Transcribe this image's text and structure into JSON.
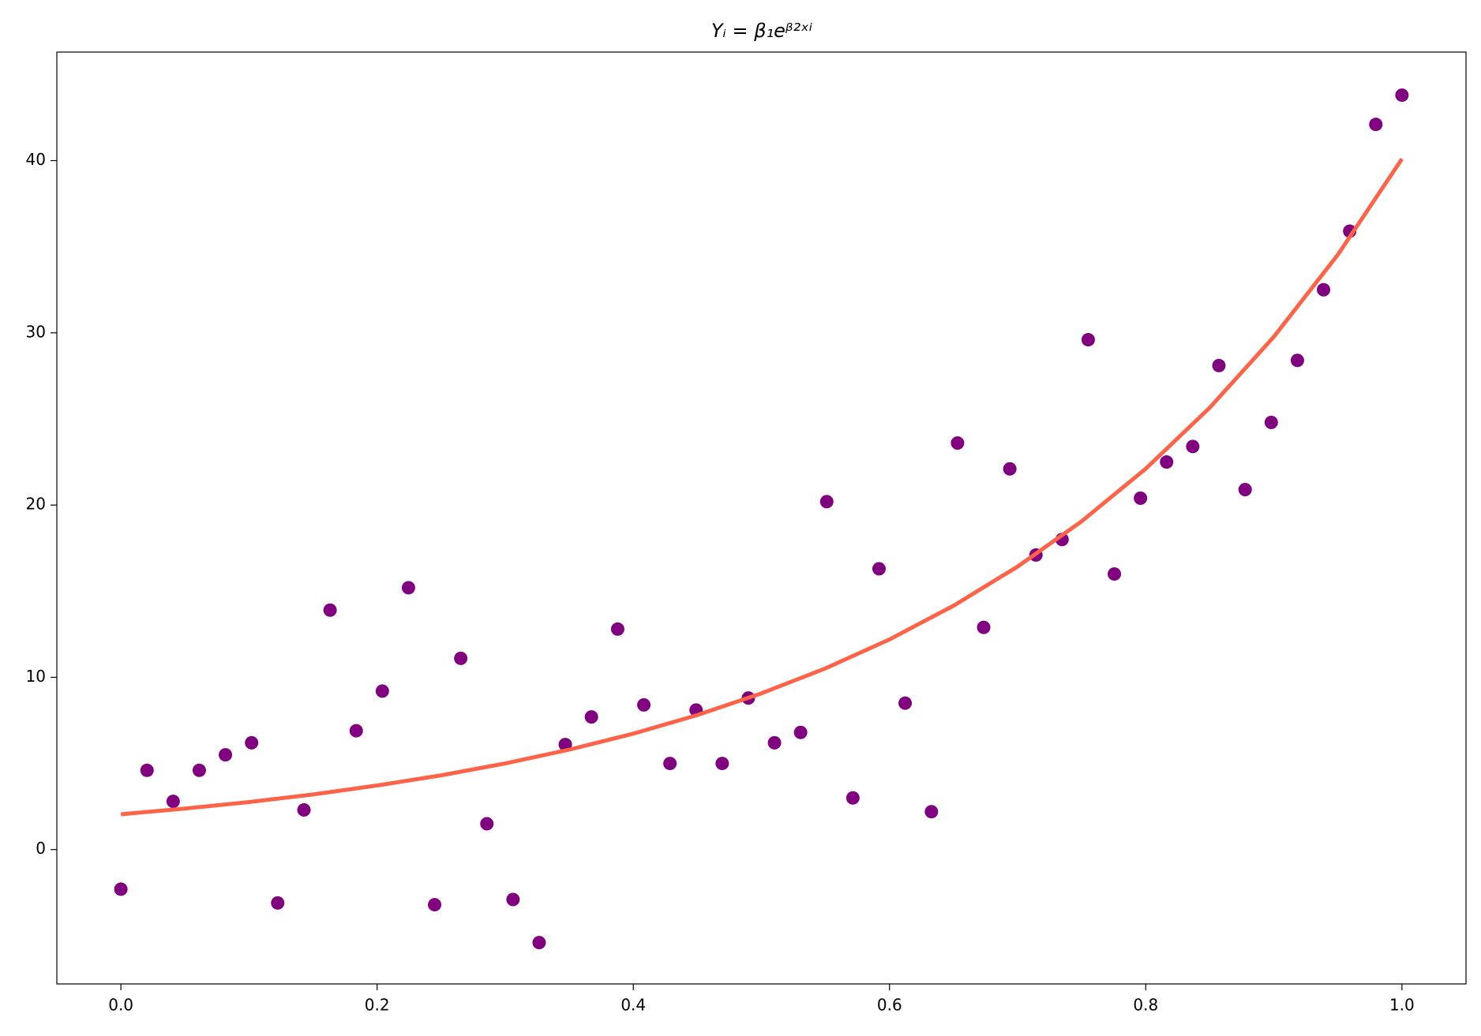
{
  "chart_data": {
    "type": "scatter",
    "title": "Yᵢ = β₁eᵝ²ˣⁱ",
    "xlim": [
      -0.05,
      1.05
    ],
    "ylim": [
      -7.8,
      46.3
    ],
    "xticks": [
      {
        "value": 0,
        "label": "0.0"
      },
      0.2,
      0.4,
      0.6,
      0.8,
      {
        "value": 1,
        "label": "1.0"
      }
    ],
    "yticks": [
      0,
      10,
      20,
      30,
      40
    ],
    "grid": false,
    "series": [
      {
        "type": "scatter",
        "color": "#800080",
        "x": [
          0,
          0.0204,
          0.0408,
          0.0612,
          0.0816,
          0.102,
          0.1224,
          0.1429,
          0.1633,
          0.1837,
          0.2041,
          0.2245,
          0.2449,
          0.2653,
          0.2857,
          0.3061,
          0.3265,
          0.3469,
          0.3673,
          0.3878,
          0.4082,
          0.4286,
          0.449,
          0.4694,
          0.4898,
          0.5102,
          0.5306,
          0.551,
          0.5714,
          0.5918,
          0.6122,
          0.6327,
          0.6531,
          0.6735,
          0.6939,
          0.7143,
          0.7347,
          0.7551,
          0.7755,
          0.7959,
          0.8163,
          0.8367,
          0.8571,
          0.8776,
          0.898,
          0.9184,
          0.9388,
          0.9592,
          0.9796,
          1
        ],
        "values": [
          -2.3,
          4.6,
          2.8,
          4.6,
          5.5,
          6.2,
          -3.1,
          2.3,
          13.9,
          6.9,
          9.2,
          15.2,
          -3.2,
          11.1,
          1.5,
          -2.9,
          -5.4,
          6.1,
          7.7,
          12.8,
          8.4,
          5.0,
          8.1,
          5.0,
          8.8,
          6.2,
          6.8,
          20.2,
          3.0,
          16.3,
          8.5,
          2.2,
          23.6,
          12.9,
          22.1,
          17.1,
          18.0,
          29.6,
          16.0,
          20.4,
          22.5,
          23.4,
          28.1,
          20.9,
          24.8,
          28.4,
          32.5,
          35.9,
          42.1,
          43.8
        ]
      },
      {
        "type": "line",
        "color": "#ff6347",
        "x": [
          0,
          0.05,
          0.1,
          0.15,
          0.2,
          0.25,
          0.3,
          0.35,
          0.4,
          0.45,
          0.5,
          0.55,
          0.6,
          0.65,
          0.7,
          0.75,
          0.8,
          0.85,
          0.9,
          0.95,
          1
        ],
        "values": [
          2.05,
          2.38,
          2.76,
          3.2,
          3.72,
          4.31,
          5.0,
          5.8,
          6.73,
          7.81,
          9.07,
          10.52,
          12.2,
          14.16,
          16.43,
          19.06,
          22.11,
          25.66,
          29.77,
          34.54,
          40.1
        ]
      }
    ]
  }
}
